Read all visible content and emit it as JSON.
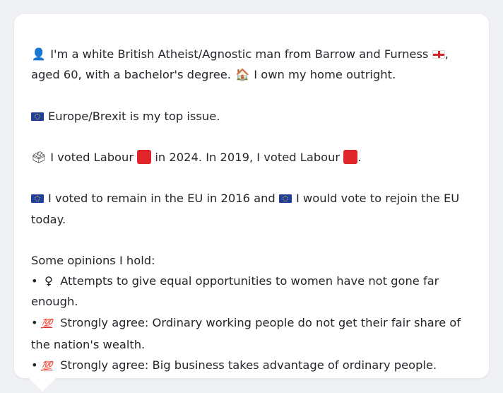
{
  "profile": {
    "intro_line1": "I'm a white British Atheist/Agnostic man from Barrow and Furness",
    "intro_line1_end": ",",
    "intro_line2_a": "aged 60, with a bachelor's degree.",
    "intro_line2_b": "I own my home outright.",
    "top_issue": "Europe/Brexit is my top issue.",
    "vote_a": "I voted Labour",
    "vote_b": "in 2024. In 2019, I voted Labour",
    "vote_c": ".",
    "eu_a": "I voted to remain in the EU in 2016 and",
    "eu_b": "I would vote to rejoin the EU",
    "eu_c": "today.",
    "opinions_header": "Some opinions I hold:",
    "opinions": [
      {
        "bullet": "•",
        "icon": "♀",
        "text1": "Attempts to give equal opportunities to women have not gone far",
        "text2": "enough."
      },
      {
        "bullet": "•",
        "icon": "💯",
        "text1": "Strongly agree: Ordinary working people do not get their fair share of",
        "text2": "the nation's wealth."
      },
      {
        "bullet": "•",
        "icon": "💯",
        "text1": "Strongly agree: Big business takes advantage of ordinary people.",
        "text2": ""
      }
    ]
  },
  "icons": {
    "person": "👤",
    "house": "🏠",
    "ballot": "🗳"
  },
  "colors": {
    "labour_red": "#e0262b",
    "eu_blue": "#1f3f9a"
  }
}
